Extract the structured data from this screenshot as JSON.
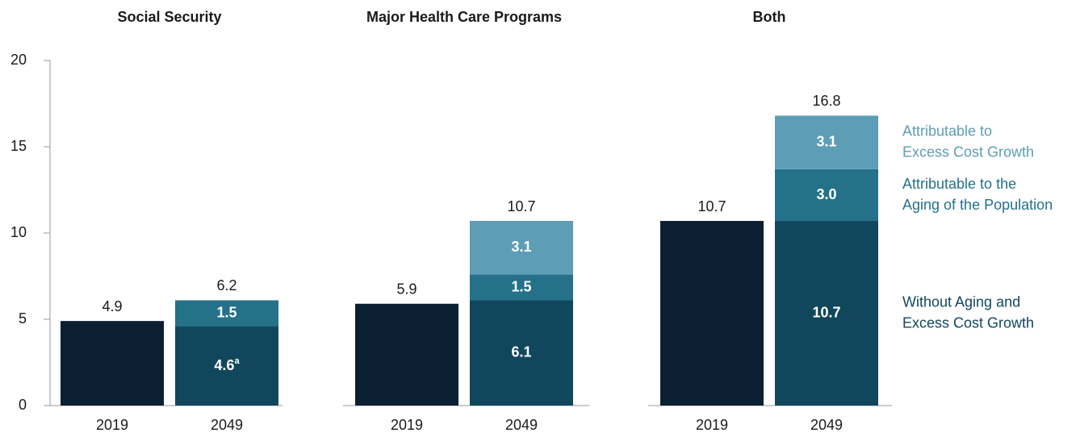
{
  "chart_data": [
    {
      "type": "bar",
      "stacked": true,
      "title": "Social Security",
      "categories": [
        "2019",
        "2049"
      ],
      "series": [
        {
          "color": "#0b1f33",
          "values": [
            4.9,
            null
          ]
        },
        {
          "color": "#11475c",
          "values": [
            null,
            4.6
          ],
          "value_notes": [
            null,
            "a"
          ]
        },
        {
          "color": "#25718a",
          "values": [
            null,
            1.5
          ]
        }
      ],
      "totals": [
        4.9,
        6.2
      ],
      "ylim": [
        0,
        20
      ],
      "yticks": [
        0,
        5,
        10,
        15,
        20
      ]
    },
    {
      "type": "bar",
      "stacked": true,
      "title": "Major Health Care Programs",
      "categories": [
        "2019",
        "2049"
      ],
      "series": [
        {
          "color": "#0b1f33",
          "values": [
            5.9,
            null
          ]
        },
        {
          "color": "#11475c",
          "values": [
            null,
            6.1
          ]
        },
        {
          "color": "#25718a",
          "values": [
            null,
            1.5
          ]
        },
        {
          "color": "#5d9db5",
          "values": [
            null,
            3.1
          ]
        }
      ],
      "totals": [
        5.9,
        10.7
      ],
      "ylim": [
        0,
        20
      ]
    },
    {
      "type": "bar",
      "stacked": true,
      "title": "Both",
      "categories": [
        "2019",
        "2049"
      ],
      "series": [
        {
          "color": "#0b1f33",
          "values": [
            10.7,
            null
          ]
        },
        {
          "name": "Without Aging and Excess Cost Growth",
          "color": "#11475c",
          "values": [
            null,
            10.7
          ]
        },
        {
          "name": "Attributable to the Aging of the Population",
          "color": "#25718a",
          "values": [
            null,
            3.0
          ],
          "value_labels": [
            null,
            "3.0"
          ]
        },
        {
          "name": "Attributable to Excess Cost Growth",
          "color": "#5d9db5",
          "values": [
            null,
            3.1
          ]
        }
      ],
      "totals": [
        10.7,
        16.8
      ],
      "ylim": [
        0,
        20
      ]
    }
  ]
}
